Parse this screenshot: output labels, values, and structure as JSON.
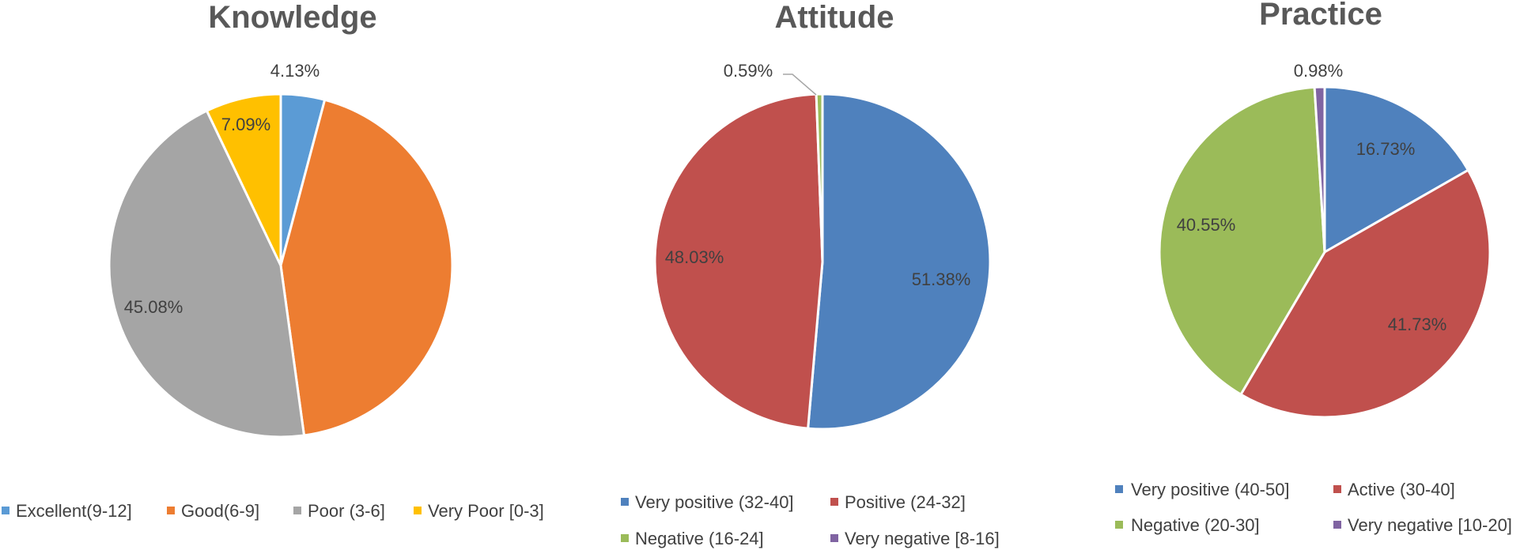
{
  "chart_data": [
    {
      "type": "pie",
      "title": "Knowledge",
      "categories": [
        "Excellent(9-12]",
        "Good(6-9]",
        "Poor (3-6]",
        "Very Poor [0-3]"
      ],
      "values": [
        4.13,
        43.7,
        45.08,
        7.09
      ],
      "data_labels": [
        "4.13%",
        "",
        "45.08%",
        "7.09%"
      ],
      "colors": [
        "#5B9BD5",
        "#ED7D31",
        "#A5A5A5",
        "#FFC000"
      ],
      "legend_position": "bottom"
    },
    {
      "type": "pie",
      "title": "Attitude",
      "categories": [
        "Very positive (32-40]",
        "Positive (24-32]",
        "Negative (16-24]",
        "Very negative [8-16]"
      ],
      "values": [
        51.38,
        48.03,
        0.59,
        0.0
      ],
      "data_labels": [
        "51.38%",
        "48.03%",
        "0.59%",
        ""
      ],
      "colors": [
        "#4F81BD",
        "#C0504D",
        "#9BBB59",
        "#8064A2"
      ],
      "legend_position": "bottom"
    },
    {
      "type": "pie",
      "title": "Practice",
      "categories": [
        "Very positive (40-50]",
        "Active (30-40]",
        "Negative (20-30]",
        "Very negative [10-20]"
      ],
      "values": [
        16.73,
        41.73,
        40.55,
        0.98
      ],
      "data_labels": [
        "16.73%",
        "41.73%",
        "40.55%",
        "0.98%"
      ],
      "colors": [
        "#4F81BD",
        "#C0504D",
        "#9BBB59",
        "#8064A2"
      ],
      "legend_position": "bottom"
    }
  ]
}
